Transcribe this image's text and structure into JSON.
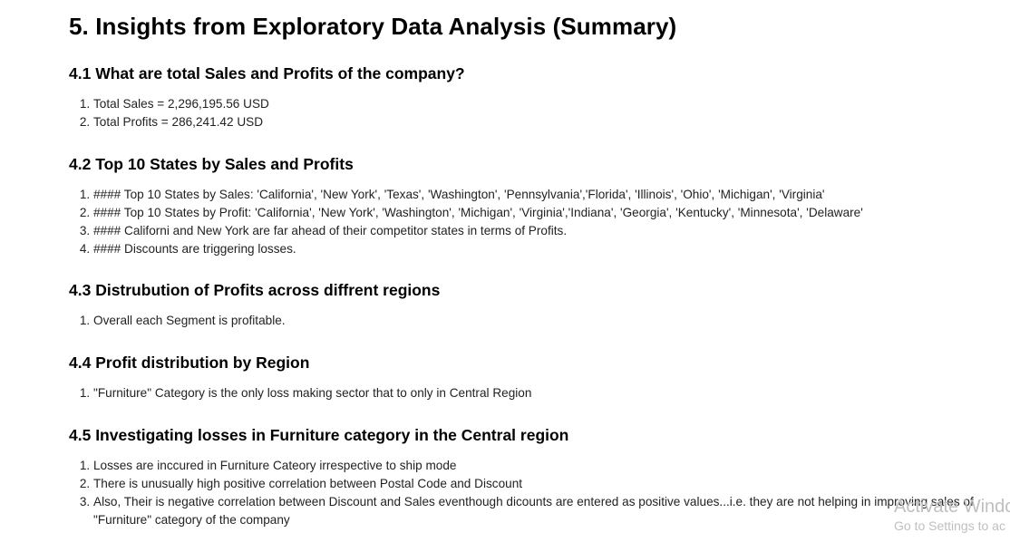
{
  "title": "5. Insights from Exploratory Data Analysis (Summary)",
  "sections": [
    {
      "heading": "4.1 What are total Sales and Profits of the company?",
      "items": [
        "Total Sales = 2,296,195.56 USD",
        "Total Profits = 286,241.42 USD"
      ]
    },
    {
      "heading": "4.2 Top 10 States by Sales and Profits",
      "items": [
        "#### Top 10 States by Sales: 'California', 'New York', 'Texas', 'Washington', 'Pennsylvania','Florida', 'Illinois', 'Ohio', 'Michigan', 'Virginia'",
        "#### Top 10 States by Profit: 'California', 'New York', 'Washington', 'Michigan', 'Virginia','Indiana', 'Georgia', 'Kentucky', 'Minnesota', 'Delaware'",
        "#### Californi and New York are far ahead of their competitor states in terms of Profits.",
        "#### Discounts are triggering losses."
      ]
    },
    {
      "heading": "4.3 Distrubution of Profits across diffrent regions",
      "items": [
        "Overall each Segment is profitable."
      ]
    },
    {
      "heading": "4.4 Profit distribution by Region",
      "items": [
        "\"Furniture\" Category is the only loss making sector that to only in Central Region"
      ]
    },
    {
      "heading": "4.5 Investigating losses in Furniture category in the Central region",
      "items": [
        "Losses are inccured in Furniture Cateory irrespective to ship mode",
        "There is unusually high positive correlation between Postal Code and Discount",
        "Also, Their is negative correlation between Discount and Sales eventhough dicounts are entered as positive values...i.e. they are not helping in improving sales of \"Furniture\" category of the company"
      ]
    }
  ],
  "watermark": {
    "title": "Activate Windo",
    "subtitle": "Go to Settings to ac"
  }
}
